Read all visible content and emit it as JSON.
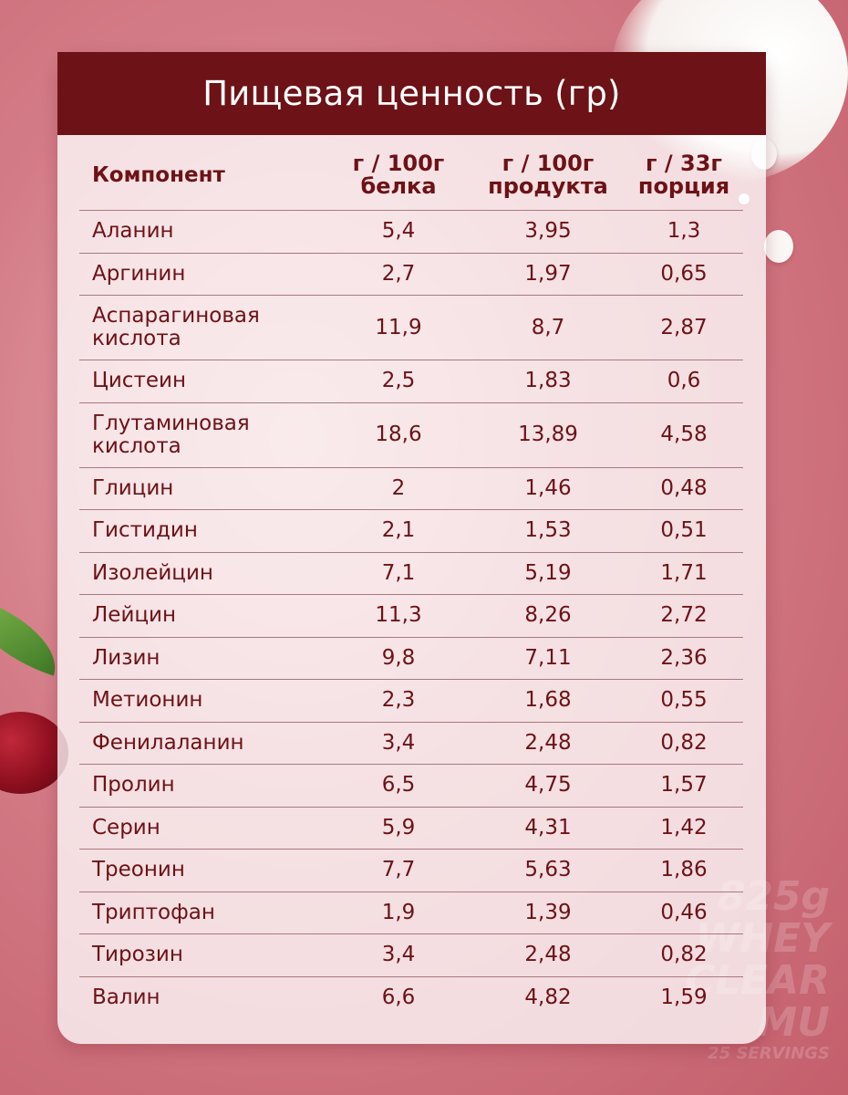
{
  "title": "Пищевая ценность (гр)",
  "headers": {
    "component": "Компонент",
    "col1": [
      "г / 100г",
      "белка"
    ],
    "col2": [
      "г / 100г",
      "продукта"
    ],
    "col3": [
      "г / 33г",
      "порция"
    ]
  },
  "rows": [
    {
      "name": [
        "Аланин"
      ],
      "v1": "5,4",
      "v2": "3,95",
      "v3": "1,3"
    },
    {
      "name": [
        "Аргинин"
      ],
      "v1": "2,7",
      "v2": "1,97",
      "v3": "0,65"
    },
    {
      "name": [
        "Аспарагиновая",
        "кислота"
      ],
      "v1": "11,9",
      "v2": "8,7",
      "v3": "2,87"
    },
    {
      "name": [
        "Цистеин"
      ],
      "v1": "2,5",
      "v2": "1,83",
      "v3": "0,6"
    },
    {
      "name": [
        "Глутаминовая",
        "кислота"
      ],
      "v1": "18,6",
      "v2": "13,89",
      "v3": "4,58"
    },
    {
      "name": [
        "Глицин"
      ],
      "v1": "2",
      "v2": "1,46",
      "v3": "0,48"
    },
    {
      "name": [
        "Гистидин"
      ],
      "v1": "2,1",
      "v2": "1,53",
      "v3": "0,51"
    },
    {
      "name": [
        "Изолейцин"
      ],
      "v1": "7,1",
      "v2": "5,19",
      "v3": "1,71"
    },
    {
      "name": [
        "Лейцин"
      ],
      "v1": "11,3",
      "v2": "8,26",
      "v3": "2,72"
    },
    {
      "name": [
        "Лизин"
      ],
      "v1": "9,8",
      "v2": "7,11",
      "v3": "2,36"
    },
    {
      "name": [
        "Метионин"
      ],
      "v1": "2,3",
      "v2": "1,68",
      "v3": "0,55"
    },
    {
      "name": [
        "Фенилаланин"
      ],
      "v1": "3,4",
      "v2": "2,48",
      "v3": "0,82"
    },
    {
      "name": [
        "Пролин"
      ],
      "v1": "6,5",
      "v2": "4,75",
      "v3": "1,57"
    },
    {
      "name": [
        "Серин"
      ],
      "v1": "5,9",
      "v2": "4,31",
      "v3": "1,42"
    },
    {
      "name": [
        "Треонин"
      ],
      "v1": "7,7",
      "v2": "5,63",
      "v3": "1,86"
    },
    {
      "name": [
        "Триптофан"
      ],
      "v1": "1,9",
      "v2": "1,39",
      "v3": "0,46"
    },
    {
      "name": [
        "Тирозин"
      ],
      "v1": "3,4",
      "v2": "2,48",
      "v3": "0,82"
    },
    {
      "name": [
        "Валин"
      ],
      "v1": "6,6",
      "v2": "4,82",
      "v3": "1,59"
    }
  ],
  "background_text": {
    "weight": "825g",
    "line1": "WHEY",
    "line2": "CLEAR MU",
    "servings": "25 SERVINGS"
  },
  "colors": {
    "header_bg": "#6d1216",
    "text": "#6d1216",
    "background": "#d37c87"
  }
}
